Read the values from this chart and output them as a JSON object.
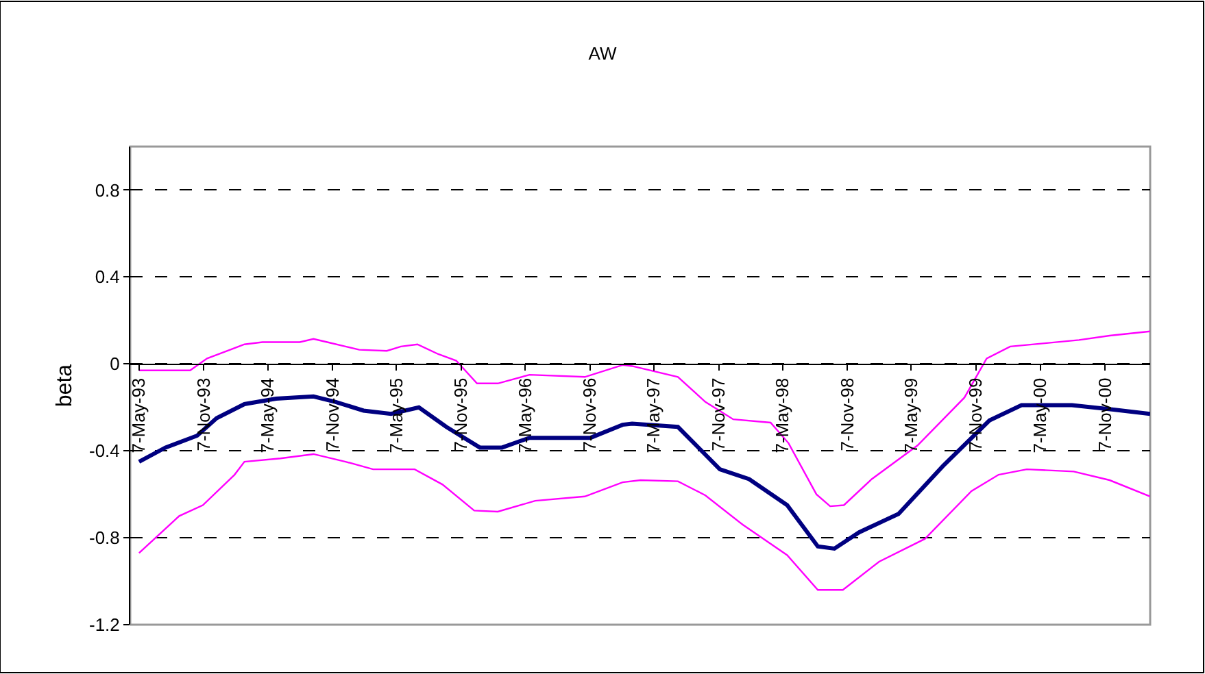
{
  "chart_data": {
    "type": "line",
    "title": "AW",
    "ylabel": "beta",
    "xlim": [
      "1993-04-12",
      "2001-03-15"
    ],
    "xticks": [
      {
        "value": "1993-05-07",
        "label": "7-May-93"
      },
      {
        "value": "1993-11-07",
        "label": "7-Nov-93"
      },
      {
        "value": "1994-05-07",
        "label": "7-May-94"
      },
      {
        "value": "1994-11-07",
        "label": "7-Nov-94"
      },
      {
        "value": "1995-05-07",
        "label": "7-May-95"
      },
      {
        "value": "1995-11-07",
        "label": "7-Nov-95"
      },
      {
        "value": "1996-05-07",
        "label": "7-May-96"
      },
      {
        "value": "1996-11-07",
        "label": "7-Nov-96"
      },
      {
        "value": "1997-05-07",
        "label": "7-May-97"
      },
      {
        "value": "1997-11-07",
        "label": "7-Nov-97"
      },
      {
        "value": "1998-05-07",
        "label": "7-May-98"
      },
      {
        "value": "1998-11-07",
        "label": "7-Nov-98"
      },
      {
        "value": "1999-05-07",
        "label": "7-May-99"
      },
      {
        "value": "1999-11-07",
        "label": "7-Nov-99"
      },
      {
        "value": "2000-05-07",
        "label": "7-May-00"
      },
      {
        "value": "2000-11-07",
        "label": "7-Nov-00"
      }
    ],
    "ylim": [
      -1.2,
      1.0
    ],
    "yticks": [
      -1.2,
      -0.8,
      -0.4,
      0,
      0.4,
      0.8
    ],
    "grid": "y",
    "line_style": "solid",
    "marker": "none",
    "legend": false,
    "series": [
      {
        "color": "#ff00ff",
        "x": [
          "1993-05-07",
          "1993-09-29",
          "1993-11-16",
          "1994-03-02",
          "1994-04-22",
          "1994-08-06",
          "1994-09-14",
          "1994-10-23",
          "1994-12-14",
          "1995-01-22",
          "1995-04-10",
          "1995-05-20",
          "1995-07-06",
          "1995-09-03",
          "1995-10-24",
          "1995-12-22",
          "1996-02-19",
          "1996-05-19",
          "1996-10-23",
          "1997-02-07",
          "1997-03-06",
          "1997-07-14",
          "1997-09-30",
          "1997-12-18",
          "1998-04-03",
          "1998-05-24",
          "1998-08-11",
          "1998-09-19",
          "1998-10-28",
          "1999-01-15",
          "1999-05-25",
          "1999-10-05",
          "1999-12-07",
          "2000-02-12",
          "2000-05-20",
          "2000-08-25",
          "2000-11-20",
          "2001-03-15"
        ],
        "values": [
          -0.03,
          -0.03,
          0.025,
          0.09,
          0.1,
          0.1,
          0.115,
          0.1,
          0.08,
          0.065,
          0.06,
          0.08,
          0.09,
          0.045,
          0.015,
          -0.09,
          -0.09,
          -0.05,
          -0.06,
          -0.005,
          -0.01,
          -0.06,
          -0.175,
          -0.255,
          -0.27,
          -0.365,
          -0.6,
          -0.655,
          -0.65,
          -0.53,
          -0.375,
          -0.155,
          0.025,
          0.08,
          0.095,
          0.11,
          0.13,
          0.15
        ]
      },
      {
        "color": "#000080",
        "x": [
          "1993-05-07",
          "1993-07-21",
          "1993-10-19",
          "1993-12-13",
          "1994-03-02",
          "1994-05-31",
          "1994-09-14",
          "1994-11-16",
          "1995-02-03",
          "1995-04-22",
          "1995-07-10",
          "1995-09-26",
          "1995-12-30",
          "1996-03-02",
          "1996-05-19",
          "1996-11-08",
          "1997-02-07",
          "1997-03-06",
          "1997-07-14",
          "1997-11-10",
          "1998-02-01",
          "1998-05-20",
          "1998-08-15",
          "1998-10-01",
          "1998-12-10",
          "1999-04-01",
          "1999-08-05",
          "1999-12-15",
          "2000-03-15",
          "2000-08-05",
          "2000-12-01",
          "2001-03-15"
        ],
        "values": [
          -0.45,
          -0.385,
          -0.33,
          -0.25,
          -0.185,
          -0.16,
          -0.15,
          -0.175,
          -0.215,
          -0.23,
          -0.2,
          -0.29,
          -0.385,
          -0.385,
          -0.34,
          -0.34,
          -0.28,
          -0.275,
          -0.29,
          -0.485,
          -0.53,
          -0.65,
          -0.84,
          -0.85,
          -0.775,
          -0.69,
          -0.47,
          -0.26,
          -0.19,
          -0.19,
          -0.21,
          -0.23
        ]
      },
      {
        "color": "#ff00ff",
        "x": [
          "1993-05-07",
          "1993-08-29",
          "1993-11-04",
          "1994-02-02",
          "1994-03-02",
          "1994-06-12",
          "1994-09-14",
          "1994-12-14",
          "1995-03-02",
          "1995-06-28",
          "1995-09-15",
          "1995-12-14",
          "1996-02-19",
          "1996-06-04",
          "1996-10-23",
          "1997-02-07",
          "1997-03-30",
          "1997-07-14",
          "1997-09-30",
          "1998-01-14",
          "1998-05-20",
          "1998-08-15",
          "1998-10-25",
          "1999-02-05",
          "1999-06-15",
          "1999-10-25",
          "2000-01-10",
          "2000-03-30",
          "2000-08-10",
          "2000-11-20",
          "2001-03-15"
        ],
        "values": [
          -0.87,
          -0.7,
          -0.65,
          -0.51,
          -0.45,
          -0.435,
          -0.415,
          -0.45,
          -0.485,
          -0.485,
          -0.555,
          -0.675,
          -0.68,
          -0.63,
          -0.61,
          -0.545,
          -0.535,
          -0.54,
          -0.605,
          -0.74,
          -0.88,
          -1.04,
          -1.04,
          -0.91,
          -0.805,
          -0.585,
          -0.51,
          -0.485,
          -0.495,
          -0.535,
          -0.61
        ]
      }
    ]
  }
}
